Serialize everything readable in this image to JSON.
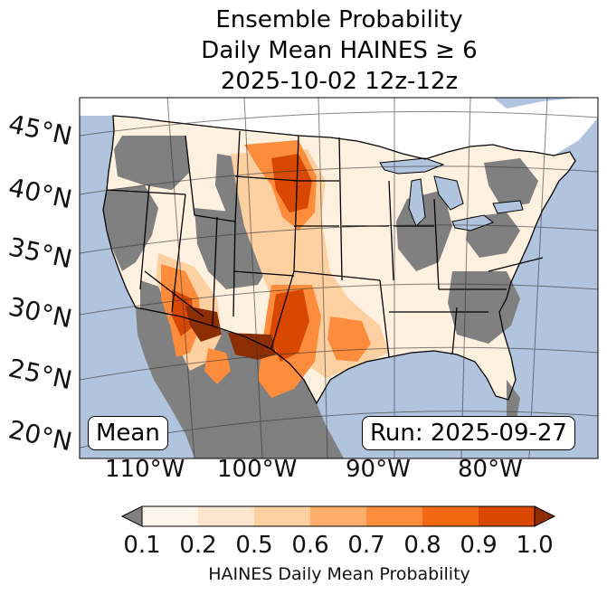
{
  "title": {
    "line1": "Ensemble Probability",
    "line2": "Daily Mean HAINES ≥ 6",
    "line3": "2025-10-02 12z-12z"
  },
  "map": {
    "lat_labels": [
      "45°N",
      "40°N",
      "35°N",
      "30°N",
      "25°N",
      "20°N"
    ],
    "lon_labels": [
      "110°W",
      "100°W",
      "90°W",
      "80°W"
    ],
    "stat_label": "Mean",
    "run_label": "Run: 2025-09-27",
    "colors": {
      "ocean": "#b0c4de",
      "land_masked": "#808080",
      "lakes": "#b0c4de"
    }
  },
  "colorbar": {
    "title": "HAINES Daily Mean Probability",
    "tick_labels": [
      "0.1",
      "0.2",
      "0.5",
      "0.6",
      "0.7",
      "0.8",
      "0.9",
      "1.0"
    ],
    "colors": [
      "#fff5eb",
      "#fee6ce",
      "#fdd0a2",
      "#fdae6b",
      "#fd8d3c",
      "#f16913",
      "#d94801"
    ],
    "under_color": "#808080",
    "over_color": "#8c2d04"
  }
}
